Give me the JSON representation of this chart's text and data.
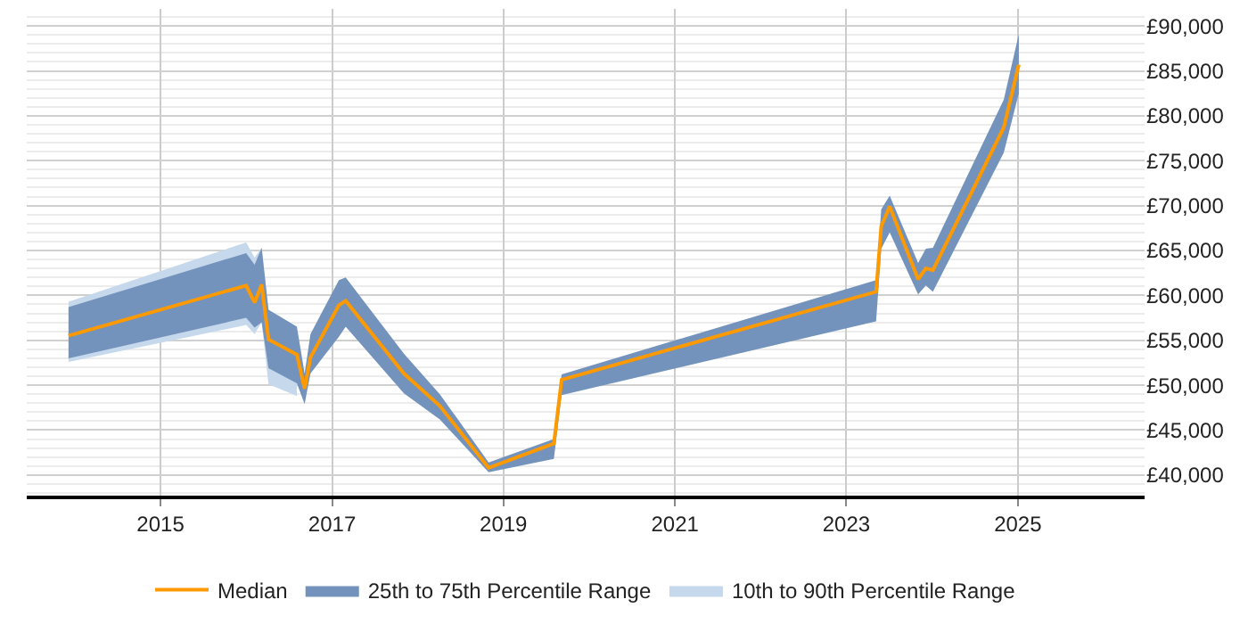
{
  "chart_data": {
    "type": "line",
    "x": [
      "2013-12-05",
      "2016-01-01",
      "2016-02-06",
      "2016-03-07",
      "2016-04-05",
      "2016-08-04",
      "2016-09-06",
      "2016-10-01",
      "2017-01-30",
      "2017-02-28",
      "2017-11-03",
      "2018-04-05",
      "2018-10-30",
      "2019-08-04",
      "2019-09-06",
      "2023-05-08",
      "2023-05-30",
      "2023-07-05",
      "2023-11-03",
      "2023-12-06",
      "2024-01-05",
      "2024-11-02",
      "2025-01-05"
    ],
    "series": [
      {
        "name": "10th to 90th Percentile Range",
        "color": "#c6d8ec",
        "x": [
          "2013-12-05",
          "2016-01-01",
          "2016-02-06",
          "2016-03-07",
          "2016-04-05",
          "2016-08-04"
        ],
        "values": [
          null,
          null,
          null,
          null,
          null,
          null
        ],
        "lower": [
          52600,
          56700,
          55700,
          57000,
          50100,
          48800
        ],
        "upper": [
          59300,
          65900,
          64200,
          65300,
          58400,
          56500
        ]
      },
      {
        "name": "25th to 75th Percentile Range",
        "color": "#7393bc",
        "values": [
          null,
          null,
          null,
          null,
          null,
          null,
          null,
          null,
          null,
          null,
          null,
          null,
          null,
          null,
          null,
          null,
          null,
          null,
          null,
          null,
          null,
          null,
          null
        ],
        "lower": [
          53000,
          57500,
          56400,
          57000,
          51900,
          50200,
          47900,
          51300,
          55400,
          56500,
          49100,
          46200,
          40300,
          41800,
          48900,
          57100,
          65200,
          67000,
          60100,
          61100,
          60400,
          75900,
          82500
        ],
        "upper": [
          58700,
          64700,
          63400,
          65300,
          58400,
          56500,
          51300,
          55700,
          61700,
          62000,
          53500,
          49000,
          41400,
          44000,
          51200,
          61700,
          69600,
          71100,
          63600,
          65200,
          65300,
          81800,
          89100
        ]
      },
      {
        "name": "Median",
        "color": "#ff9900",
        "values": [
          55500,
          61100,
          59200,
          61200,
          55100,
          53400,
          49600,
          53100,
          58900,
          59400,
          51300,
          47700,
          40800,
          43500,
          50600,
          60400,
          67700,
          69900,
          61800,
          63000,
          62800,
          78700,
          85700
        ]
      }
    ],
    "xlim": [
      "2013-06-10",
      "2026-06-25"
    ],
    "xticks": [
      {
        "value": "2015-01-01",
        "label": "2015"
      },
      {
        "value": "2017-01-01",
        "label": "2017"
      },
      {
        "value": "2019-01-01",
        "label": "2019"
      },
      {
        "value": "2021-01-01",
        "label": "2021"
      },
      {
        "value": "2023-01-01",
        "label": "2023"
      },
      {
        "value": "2025-01-01",
        "label": "2025"
      }
    ],
    "ylim": [
      37700,
      91900
    ],
    "yticks": [
      {
        "value": 40000,
        "label": "£40,000"
      },
      {
        "value": 45000,
        "label": "£45,000"
      },
      {
        "value": 50000,
        "label": "£50,000"
      },
      {
        "value": 55000,
        "label": "£55,000"
      },
      {
        "value": 60000,
        "label": "£60,000"
      },
      {
        "value": 65000,
        "label": "£65,000"
      },
      {
        "value": 70000,
        "label": "£70,000"
      },
      {
        "value": 75000,
        "label": "£75,000"
      },
      {
        "value": 80000,
        "label": "£80,000"
      },
      {
        "value": 85000,
        "label": "£85,000"
      },
      {
        "value": 90000,
        "label": "£90,000"
      }
    ],
    "grid": true,
    "legend": "bottom",
    "marker": "none",
    "line_style": "solid"
  }
}
